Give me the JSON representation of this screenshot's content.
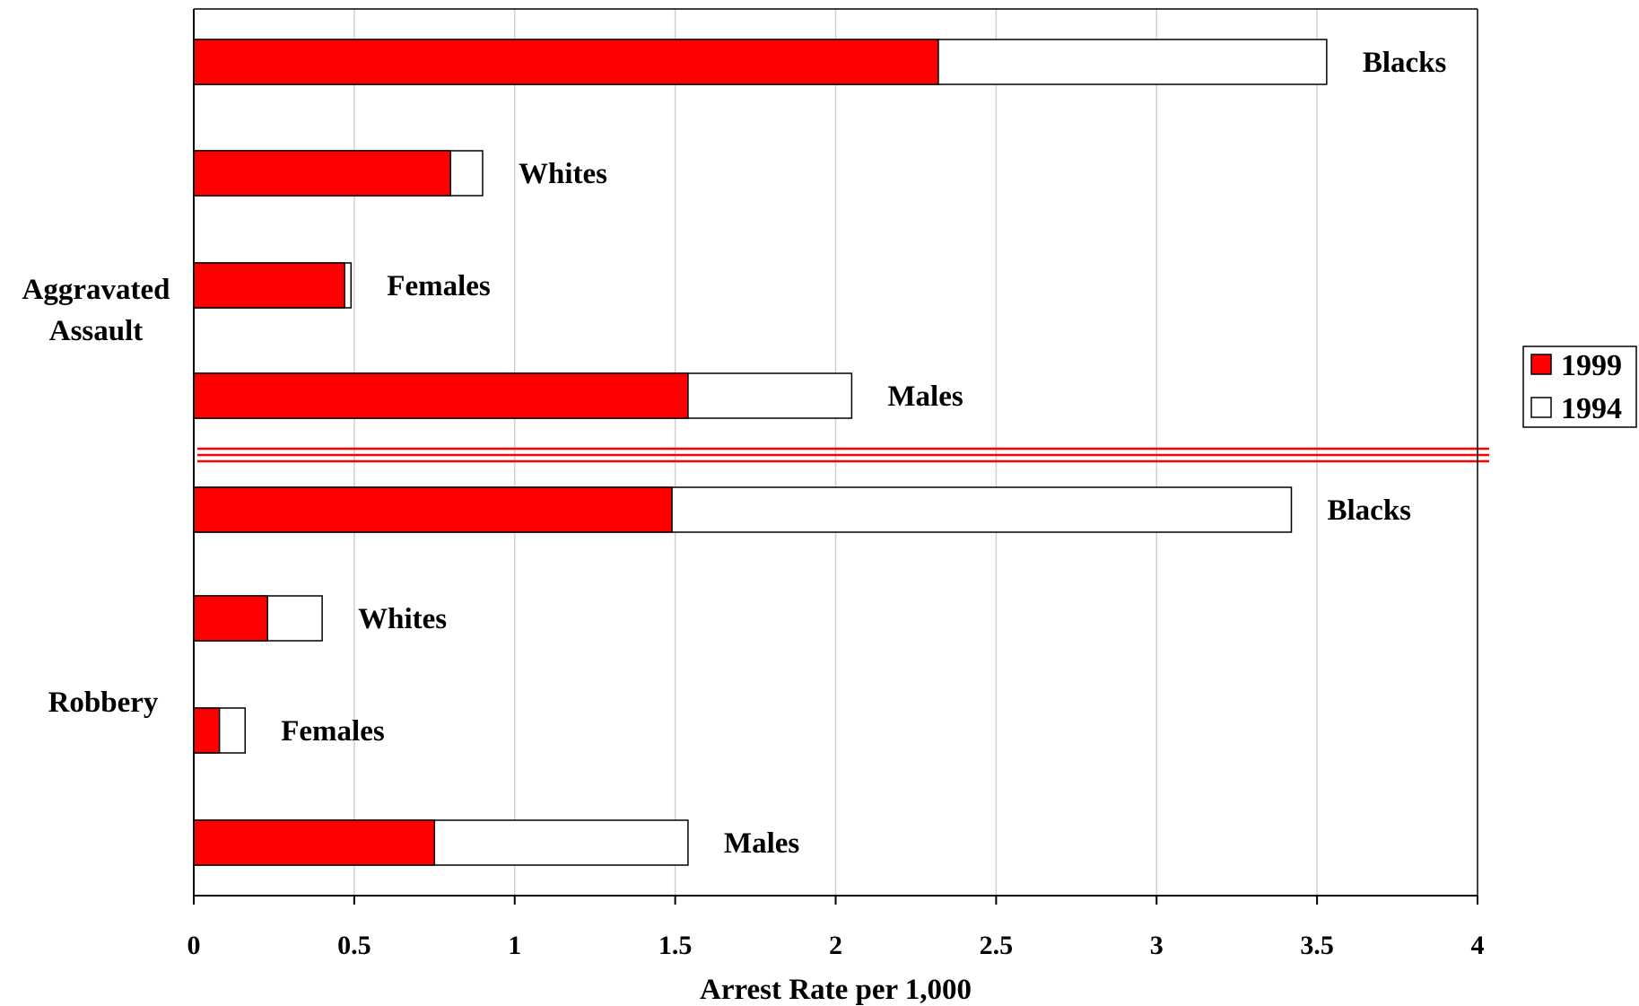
{
  "chart_data": {
    "type": "bar",
    "orientation": "horizontal",
    "stacked_overlay": true,
    "xlabel": "Arrest Rate per 1,000",
    "xlim": [
      0,
      4
    ],
    "x_ticks": [
      "0",
      "0.5",
      "1",
      "1.5",
      "2",
      "2.5",
      "3",
      "3.5",
      "4"
    ],
    "grid": "vertical",
    "legend_position": "right",
    "groups": [
      {
        "name_lines": [
          "Aggravated",
          "Assault"
        ],
        "categories": [
          {
            "label": "Blacks",
            "v1999": 2.32,
            "v1994": 3.53
          },
          {
            "label": "Whites",
            "v1999": 0.8,
            "v1994": 0.9
          },
          {
            "label": "Females",
            "v1999": 0.47,
            "v1994": 0.49
          },
          {
            "label": "Males",
            "v1999": 1.54,
            "v1994": 2.05
          }
        ]
      },
      {
        "name_lines": [
          "Robbery"
        ],
        "categories": [
          {
            "label": "Blacks",
            "v1999": 1.49,
            "v1994": 3.42
          },
          {
            "label": "Whites",
            "v1999": 0.23,
            "v1994": 0.4
          },
          {
            "label": "Females",
            "v1999": 0.08,
            "v1994": 0.16
          },
          {
            "label": "Males",
            "v1999": 0.75,
            "v1994": 1.54
          }
        ]
      }
    ],
    "series": [
      {
        "name": "1999",
        "key": "v1999",
        "color": "#ff0000"
      },
      {
        "name": "1994",
        "key": "v1994",
        "color": "#ffffff"
      }
    ],
    "divider_color": "#ff0000",
    "gridline_color": "#d0d0d0"
  }
}
